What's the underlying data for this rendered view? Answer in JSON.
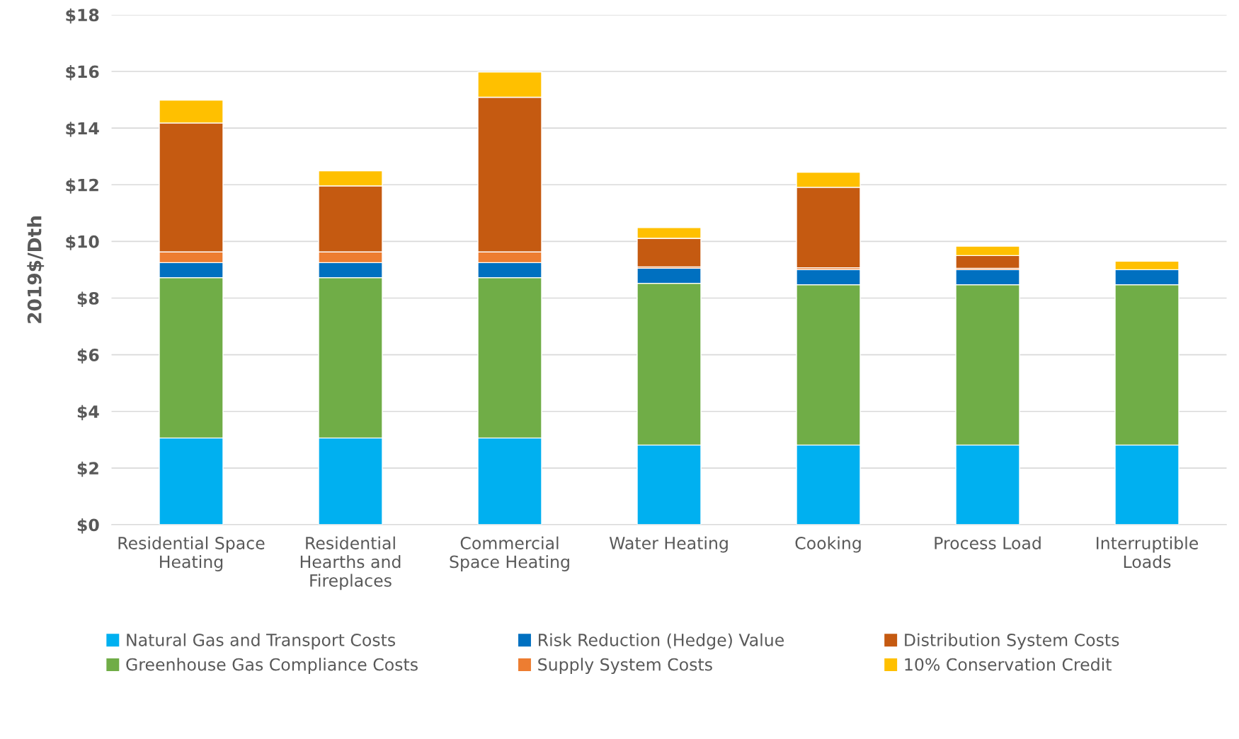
{
  "chart_data": {
    "type": "bar",
    "stacked": true,
    "ylabel": "2019$/Dth",
    "categories": [
      "Residential Space\nHeating",
      "Residential\nHearths and\nFireplaces",
      "Commercial\nSpace Heating",
      "Water Heating",
      "Cooking",
      "Process Load",
      "Interruptible\nLoads"
    ],
    "series": [
      {
        "name": "Natural Gas and Transport Costs",
        "color": "#00b0f0",
        "values": [
          3.06,
          3.06,
          3.06,
          2.81,
          2.81,
          2.81,
          2.81
        ]
      },
      {
        "name": "Greenhouse Gas Compliance Costs",
        "color": "#70ad47",
        "values": [
          5.66,
          5.66,
          5.66,
          5.71,
          5.66,
          5.66,
          5.66
        ]
      },
      {
        "name": "Risk Reduction (Hedge) Value",
        "color": "#0070c0",
        "values": [
          0.53,
          0.53,
          0.53,
          0.53,
          0.53,
          0.53,
          0.53
        ]
      },
      {
        "name": "Supply System Costs",
        "color": "#ed7d31",
        "values": [
          0.38,
          0.38,
          0.38,
          0.05,
          0.07,
          0.05,
          0
        ]
      },
      {
        "name": "Distribution System Costs",
        "color": "#c55a11",
        "values": [
          4.55,
          2.33,
          5.46,
          1.01,
          2.84,
          0.45,
          0
        ]
      },
      {
        "name": "10% Conservation Credit",
        "color": "#ffc000",
        "values": [
          0.81,
          0.53,
          0.89,
          0.38,
          0.53,
          0.33,
          0.3
        ]
      }
    ],
    "ylim": [
      0,
      18
    ],
    "yticks": [
      {
        "value": 0,
        "label": "$0"
      },
      {
        "value": 2,
        "label": "$2"
      },
      {
        "value": 4,
        "label": "$4"
      },
      {
        "value": 6,
        "label": "$6"
      },
      {
        "value": 8,
        "label": "$8"
      },
      {
        "value": 10,
        "label": "$10"
      },
      {
        "value": 12,
        "label": "$12"
      },
      {
        "value": 14,
        "label": "$14"
      },
      {
        "value": 16,
        "label": "$16"
      },
      {
        "value": 18,
        "label": "$18"
      }
    ],
    "grid": "y",
    "legend": "bottom"
  }
}
